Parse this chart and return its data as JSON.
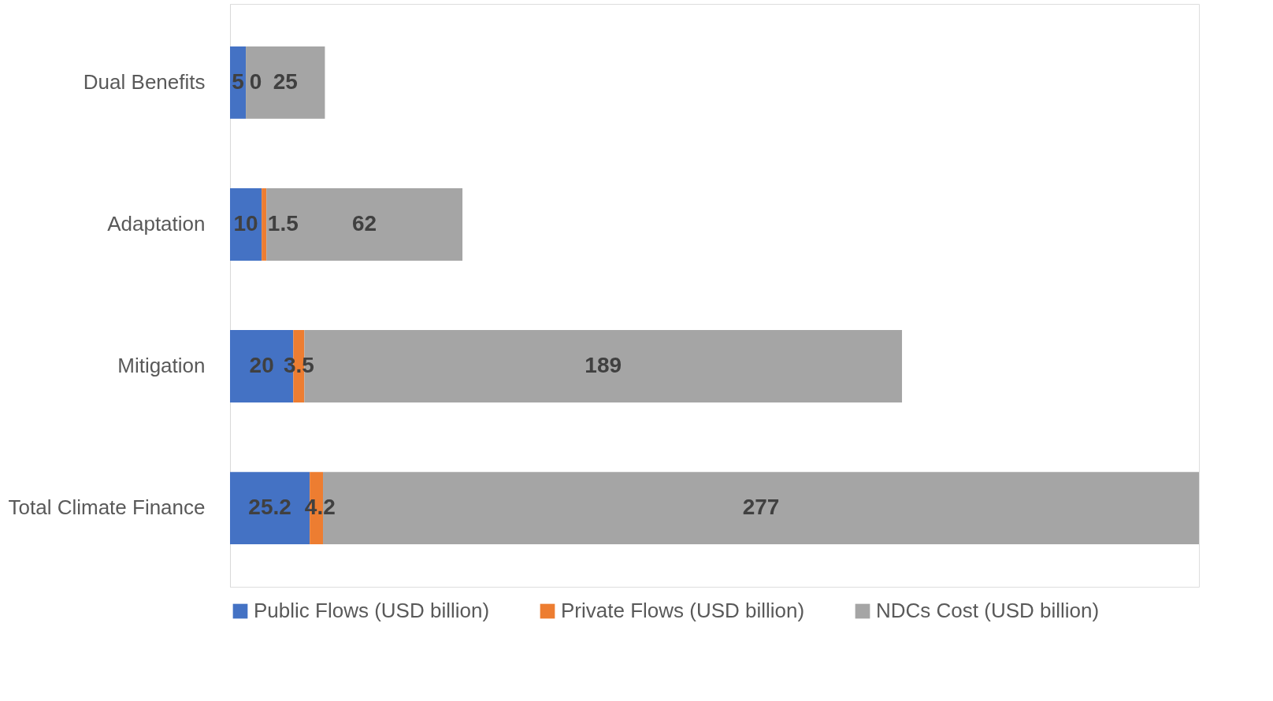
{
  "chart_data": {
    "type": "bar",
    "orientation": "horizontal",
    "stacked": true,
    "categories": [
      "Dual Benefits",
      "Adaptation",
      "Mitigation",
      "Total Climate Finance"
    ],
    "series": [
      {
        "name": "Public Flows (USD billion)",
        "color": "#4472c4",
        "values": [
          5,
          10,
          20,
          25.2
        ]
      },
      {
        "name": "Private Flows (USD billion)",
        "color": "#ed7d31",
        "values": [
          0,
          1.5,
          3.5,
          4.2
        ]
      },
      {
        "name": "NDCs Cost (USD billion)",
        "color": "#a5a5a5",
        "values": [
          25,
          62,
          189,
          277
        ]
      }
    ],
    "data_labels": true,
    "legend": "bottom",
    "grid": false,
    "tick_labels": "y"
  }
}
